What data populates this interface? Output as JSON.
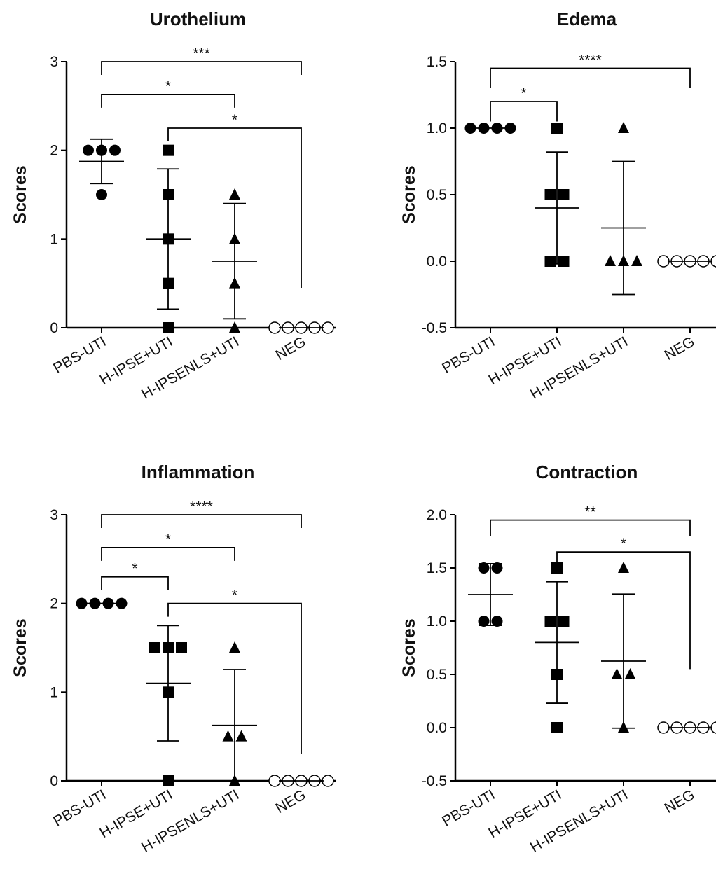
{
  "chart_data": [
    {
      "type": "dot",
      "title": "Urothelium",
      "ylabel": "Scores",
      "categories": [
        "PBS-UTI",
        "H-IPSE+UTI",
        "H-IPSENLS+UTI",
        "NEG"
      ],
      "markers": [
        "circle",
        "square",
        "triangle",
        "open-circle"
      ],
      "points": [
        [
          2,
          2,
          2,
          1.5
        ],
        [
          2,
          1.5,
          1,
          0.5,
          0
        ],
        [
          1.5,
          1,
          0.5,
          0
        ],
        [
          0,
          0,
          0,
          0,
          0
        ]
      ],
      "mean": [
        1.875,
        1,
        0.75,
        0
      ],
      "sd": [
        0.25,
        0.79,
        0.65,
        0
      ],
      "ylim": [
        0,
        3
      ],
      "yticks": [
        0,
        1,
        2,
        3
      ],
      "brackets": [
        {
          "from": 0,
          "to": 3,
          "y": 3,
          "ends": [
            2.85,
            2.85
          ],
          "label": "***"
        },
        {
          "from": 0,
          "to": 2,
          "y": 2.63,
          "ends": [
            2.48,
            2.48
          ],
          "label": "*"
        },
        {
          "from": 1,
          "to": 3,
          "y": 2.25,
          "ends": [
            2.1,
            0.45
          ],
          "label": "*"
        }
      ]
    },
    {
      "type": "dot",
      "title": "Edema",
      "ylabel": "Scores",
      "categories": [
        "PBS-UTI",
        "H-IPSE+UTI",
        "H-IPSENLS+UTI",
        "NEG"
      ],
      "markers": [
        "circle",
        "square",
        "triangle",
        "open-circle"
      ],
      "points": [
        [
          1,
          1,
          1,
          1
        ],
        [
          1,
          0.5,
          0.5,
          0,
          0
        ],
        [
          1,
          0,
          0,
          0
        ],
        [
          0,
          0,
          0,
          0,
          0
        ]
      ],
      "mean": [
        1,
        0.4,
        0.25,
        0
      ],
      "sd": [
        0,
        0.42,
        0.5,
        0
      ],
      "ylim": [
        -0.5,
        1.5
      ],
      "yticks": [
        -0.5,
        {
          "value": 0,
          "label": "0.0"
        },
        0.5,
        {
          "value": 1,
          "label": "1.0"
        },
        1.5
      ],
      "brackets": [
        {
          "from": 0,
          "to": 3,
          "y": 1.45,
          "ends": [
            1.3,
            1.3
          ],
          "label": "****"
        },
        {
          "from": 0,
          "to": 1,
          "y": 1.2,
          "ends": [
            1.05,
            1.05
          ],
          "label": "*"
        }
      ]
    },
    {
      "type": "dot",
      "title": "Inflammation",
      "ylabel": "Scores",
      "categories": [
        "PBS-UTI",
        "H-IPSE+UTI",
        "H-IPSENLS+UTI",
        "NEG"
      ],
      "markers": [
        "circle",
        "square",
        "triangle",
        "open-circle"
      ],
      "points": [
        [
          2,
          2,
          2,
          2
        ],
        [
          1.5,
          1.5,
          1.5,
          1,
          0
        ],
        [
          1.5,
          0.5,
          0.5,
          0
        ],
        [
          0,
          0,
          0,
          0,
          0
        ]
      ],
      "mean": [
        2,
        1.1,
        0.625,
        0
      ],
      "sd": [
        0,
        0.65,
        0.63,
        0
      ],
      "ylim": [
        0,
        3
      ],
      "yticks": [
        0,
        1,
        2,
        3
      ],
      "brackets": [
        {
          "from": 0,
          "to": 3,
          "y": 3,
          "ends": [
            2.85,
            2.85
          ],
          "label": "****"
        },
        {
          "from": 0,
          "to": 2,
          "y": 2.63,
          "ends": [
            2.48,
            2.48
          ],
          "label": "*"
        },
        {
          "from": 0,
          "to": 1,
          "y": 2.3,
          "ends": [
            2.15,
            2.15
          ],
          "label": "*"
        },
        {
          "from": 1,
          "to": 3,
          "y": 2,
          "ends": [
            1.85,
            0.3
          ],
          "label": "*"
        }
      ]
    },
    {
      "type": "dot",
      "title": "Contraction",
      "ylabel": "Scores",
      "categories": [
        "PBS-UTI",
        "H-IPSE+UTI",
        "H-IPSENLS+UTI",
        "NEG"
      ],
      "markers": [
        "circle",
        "square",
        "triangle",
        "open-circle"
      ],
      "points": [
        [
          1.5,
          1.5,
          1,
          1
        ],
        [
          1.5,
          1,
          1,
          0.5,
          0
        ],
        [
          1.5,
          0.5,
          0.5,
          0
        ],
        [
          0,
          0,
          0,
          0,
          0
        ]
      ],
      "mean": [
        1.25,
        0.8,
        0.625,
        0
      ],
      "sd": [
        0.29,
        0.57,
        0.63,
        0
      ],
      "ylim": [
        -0.5,
        2
      ],
      "yticks": [
        -0.5,
        {
          "value": 0,
          "label": "0.0"
        },
        0.5,
        {
          "value": 1,
          "label": "1.0"
        },
        1.5,
        {
          "value": 2,
          "label": "2.0"
        }
      ],
      "brackets": [
        {
          "from": 0,
          "to": 3,
          "y": 1.95,
          "ends": [
            1.8,
            1.8
          ],
          "label": "**"
        },
        {
          "from": 1,
          "to": 3,
          "y": 1.65,
          "ends": [
            1.5,
            0.55
          ],
          "label": "*"
        }
      ]
    }
  ]
}
